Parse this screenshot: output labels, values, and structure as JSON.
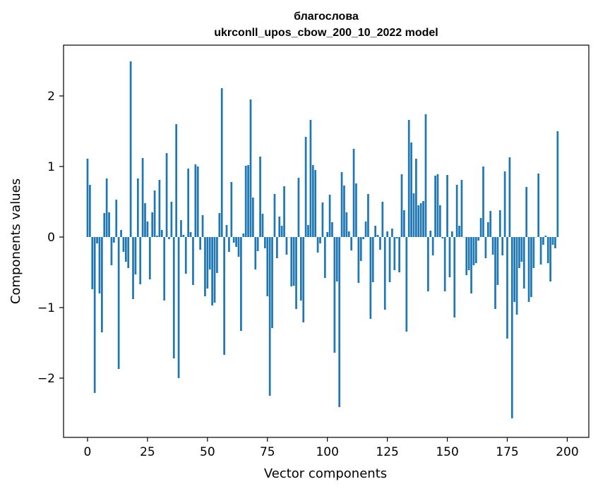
{
  "chart_data": {
    "type": "bar",
    "title": "благослова",
    "subtitle": "ukrconll_upos_cbow_200_10_2022 model",
    "xlabel": "Vector components",
    "ylabel": "Components values",
    "xlim": [
      -10,
      209
    ],
    "ylim": [
      -2.84,
      2.72
    ],
    "xticks": [
      0,
      25,
      50,
      75,
      100,
      125,
      150,
      175,
      200
    ],
    "yticks": [
      -2,
      -1,
      0,
      1,
      2
    ],
    "ytick_labels": [
      "−2",
      "−1",
      "0",
      "1",
      "2"
    ],
    "grid": false,
    "bar_color": "#1f77b4",
    "values": [
      1.11,
      0.74,
      -0.74,
      -2.21,
      -0.09,
      -0.8,
      -1.35,
      0.34,
      0.83,
      0.35,
      -0.4,
      -0.08,
      0.53,
      -1.87,
      0.1,
      -0.21,
      -0.35,
      -0.44,
      2.49,
      -0.88,
      -0.53,
      0.83,
      -0.67,
      1.12,
      0.48,
      0.22,
      -0.6,
      0.35,
      0.66,
      0.02,
      0.81,
      0.1,
      -0.9,
      1.19,
      -0.03,
      0.5,
      -1.72,
      1.6,
      -2.0,
      0.24,
      0.03,
      -0.52,
      0.97,
      0.07,
      -0.68,
      1.03,
      1.0,
      -0.18,
      0.31,
      -0.84,
      -0.73,
      -0.46,
      -0.97,
      -0.93,
      -0.51,
      0.34,
      2.11,
      -1.67,
      0.17,
      -0.21,
      0.78,
      -0.08,
      -0.14,
      -0.28,
      -1.33,
      0.05,
      1.01,
      1.02,
      1.95,
      0.56,
      -0.46,
      -0.2,
      1.14,
      0.33,
      -0.16,
      -0.84,
      -2.25,
      -1.29,
      0.61,
      -0.3,
      0.29,
      0.16,
      0.72,
      -0.25,
      0.0,
      -0.7,
      -0.69,
      -1.02,
      0.84,
      -0.9,
      -1.21,
      1.42,
      0.17,
      1.66,
      1.02,
      0.95,
      -0.22,
      -0.09,
      0.49,
      -0.58,
      0.07,
      0.6,
      0.21,
      -1.64,
      -0.63,
      -2.41,
      0.92,
      0.73,
      0.35,
      0.08,
      -0.19,
      1.25,
      0.76,
      -0.65,
      -0.34,
      -0.03,
      0.22,
      0.61,
      -1.16,
      -0.64,
      0.16,
      0.03,
      -0.18,
      0.5,
      -1.03,
      0.08,
      -0.64,
      0.12,
      -0.47,
      -0.02,
      -0.5,
      0.89,
      0.38,
      -1.34,
      1.66,
      1.34,
      0.62,
      1.11,
      0.45,
      0.48,
      0.51,
      1.74,
      -0.77,
      0.09,
      -0.26,
      0.87,
      0.89,
      0.45,
      -0.02,
      -0.77,
      0.88,
      -0.57,
      0.08,
      -1.14,
      0.74,
      0.16,
      0.81,
      0.0,
      -0.54,
      -0.47,
      -0.8,
      -0.4,
      -0.37,
      -0.05,
      0.27,
      1.0,
      -0.3,
      0.21,
      0.37,
      -0.25,
      -1.02,
      -0.68,
      0.38,
      -0.26,
      0.93,
      -1.44,
      1.13,
      -2.57,
      -0.92,
      -1.1,
      -0.44,
      -0.35,
      -0.73,
      0.71,
      -0.92,
      -0.85,
      -0.44,
      0.0,
      0.9,
      -0.39,
      -0.11,
      0.02,
      -0.37,
      -0.63,
      -0.11,
      -0.16,
      1.5
    ]
  }
}
